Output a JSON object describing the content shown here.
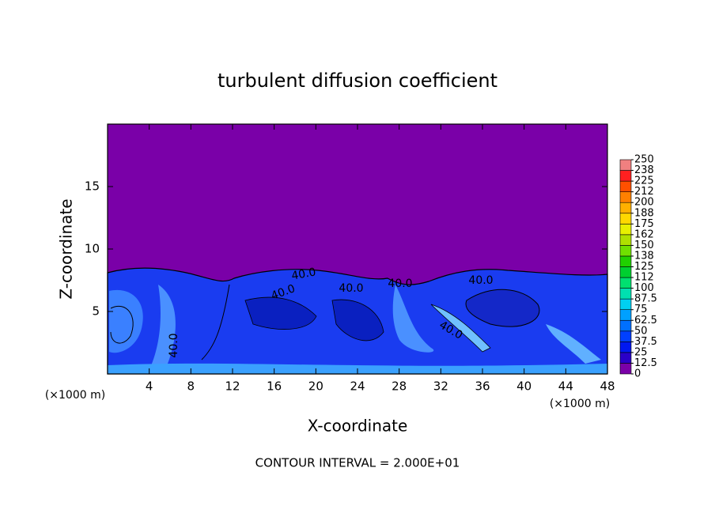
{
  "chart_data": {
    "type": "contour",
    "title": "turbulent diffusion coefficient",
    "x_label": "X-coordinate",
    "y_label": "Z-coordinate",
    "x_unit_label": "(×1000 m)",
    "footer": "CONTOUR INTERVAL = 2.000E+01",
    "xlim": [
      0,
      48
    ],
    "xticks": [
      4,
      8,
      12,
      16,
      20,
      24,
      28,
      32,
      36,
      40,
      44,
      48
    ],
    "ylim": [
      0,
      20
    ],
    "yticks": [
      5,
      10,
      15
    ],
    "contour_labels": [
      "40.0",
      "40.0",
      "40.0",
      "40.0",
      "40.0",
      "40.0",
      "40.0"
    ],
    "colorbar": {
      "ticks": [
        0,
        12.5,
        25,
        37.5,
        50,
        62.5,
        75,
        87.5,
        100,
        {
          "value": 112.5,
          "label": "112"
        },
        125,
        {
          "value": 137.5,
          "label": "138"
        },
        150,
        {
          "value": 162.5,
          "label": "162"
        },
        175,
        {
          "value": 187.5,
          "label": "188"
        },
        200,
        {
          "value": 212.5,
          "label": "212"
        },
        225,
        {
          "value": 237.5,
          "label": "238"
        },
        250
      ],
      "colors": [
        "#7a00a8",
        "#2a00c8",
        "#0018f0",
        "#0040ff",
        "#0070ff",
        "#00a0ff",
        "#00d0f0",
        "#00e0b0",
        "#00e070",
        "#00d030",
        "#20d000",
        "#70e000",
        "#b0e000",
        "#e8f000",
        "#ffd800",
        "#ffb000",
        "#ff8000",
        "#ff5000",
        "#ff2020",
        "#f08080"
      ]
    }
  }
}
